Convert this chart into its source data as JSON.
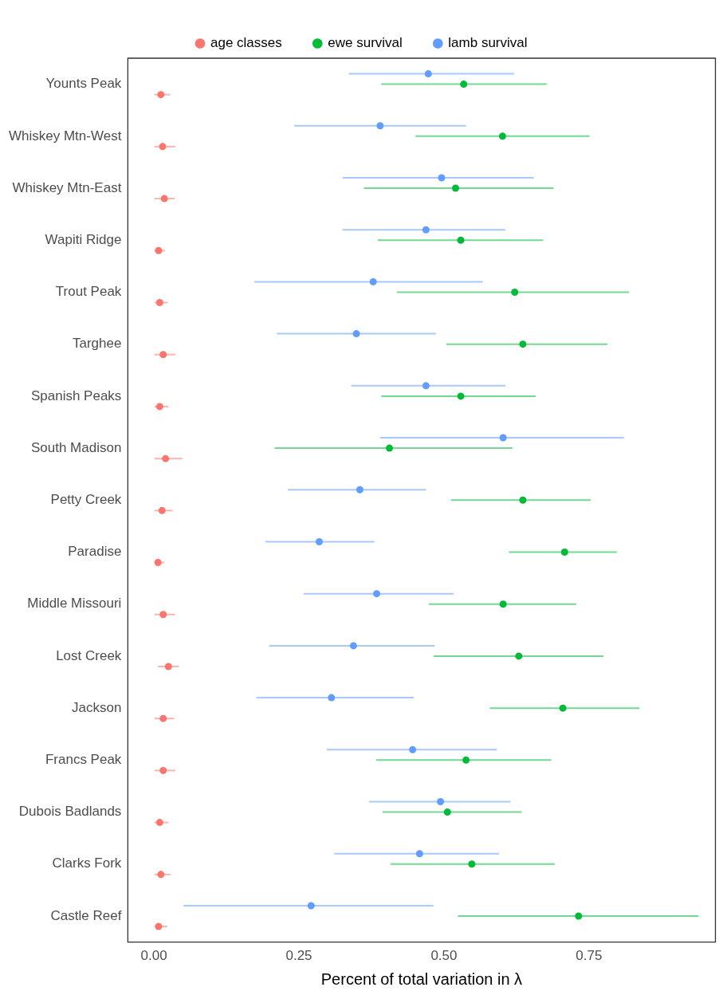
{
  "chart_data": {
    "type": "scatter",
    "orientation": "horizontal",
    "xlabel": "Percent of total variation in λ",
    "categories": [
      "Younts Peak",
      "Whiskey Mtn-West",
      "Whiskey Mtn-East",
      "Wapiti Ridge",
      "Trout Peak",
      "Targhee",
      "Spanish Peaks",
      "South Madison",
      "Petty Creek",
      "Paradise",
      "Middle Missouri",
      "Lost Creek",
      "Jackson",
      "Francs Peak",
      "Dubois Badlands",
      "Clarks Fork",
      "Castle Reef"
    ],
    "series": [
      {
        "name": "age classes",
        "color": "#f8766d",
        "values": [
          0.012,
          0.015,
          0.018,
          0.008,
          0.01,
          0.016,
          0.01,
          0.02,
          0.014,
          0.007,
          0.016,
          0.025,
          0.016,
          0.016,
          0.01,
          0.012,
          0.008
        ],
        "errors": [
          [
            0.001,
            0.028
          ],
          [
            0.001,
            0.037
          ],
          [
            0.001,
            0.036
          ],
          [
            0.001,
            0.019
          ],
          [
            0.001,
            0.024
          ],
          [
            0.001,
            0.037
          ],
          [
            0.001,
            0.025
          ],
          [
            0.001,
            0.049
          ],
          [
            0.001,
            0.032
          ],
          [
            0.001,
            0.018
          ],
          [
            0.001,
            0.036
          ],
          [
            0.007,
            0.043
          ],
          [
            0.001,
            0.035
          ],
          [
            0.001,
            0.037
          ],
          [
            0.001,
            0.025
          ],
          [
            0.001,
            0.029
          ],
          [
            0.001,
            0.023
          ]
        ]
      },
      {
        "name": "ewe survival",
        "color": "#00ba38",
        "values": [
          0.534,
          0.601,
          0.52,
          0.529,
          0.622,
          0.636,
          0.529,
          0.406,
          0.636,
          0.708,
          0.602,
          0.629,
          0.705,
          0.538,
          0.506,
          0.548,
          0.732
        ],
        "errors": [
          [
            0.392,
            0.677
          ],
          [
            0.451,
            0.751
          ],
          [
            0.362,
            0.689
          ],
          [
            0.386,
            0.671
          ],
          [
            0.419,
            0.819
          ],
          [
            0.504,
            0.782
          ],
          [
            0.392,
            0.658
          ],
          [
            0.208,
            0.618
          ],
          [
            0.512,
            0.753
          ],
          [
            0.612,
            0.798
          ],
          [
            0.474,
            0.728
          ],
          [
            0.482,
            0.775
          ],
          [
            0.579,
            0.837
          ],
          [
            0.383,
            0.685
          ],
          [
            0.394,
            0.634
          ],
          [
            0.408,
            0.691
          ],
          [
            0.524,
            0.939
          ]
        ]
      },
      {
        "name": "lamb survival",
        "color": "#619cff",
        "values": [
          0.473,
          0.39,
          0.496,
          0.469,
          0.378,
          0.349,
          0.469,
          0.602,
          0.355,
          0.285,
          0.384,
          0.344,
          0.306,
          0.446,
          0.494,
          0.458,
          0.271
        ],
        "errors": [
          [
            0.336,
            0.621
          ],
          [
            0.242,
            0.538
          ],
          [
            0.325,
            0.655
          ],
          [
            0.325,
            0.606
          ],
          [
            0.173,
            0.567
          ],
          [
            0.212,
            0.486
          ],
          [
            0.34,
            0.606
          ],
          [
            0.39,
            0.81
          ],
          [
            0.231,
            0.469
          ],
          [
            0.192,
            0.38
          ],
          [
            0.258,
            0.517
          ],
          [
            0.199,
            0.484
          ],
          [
            0.177,
            0.448
          ],
          [
            0.298,
            0.591
          ],
          [
            0.371,
            0.615
          ],
          [
            0.311,
            0.595
          ],
          [
            0.051,
            0.482
          ]
        ]
      }
    ],
    "xlim": [
      -0.045,
      0.968
    ],
    "xticks": [
      {
        "value": 0,
        "label": "0.00"
      },
      {
        "value": 0.25,
        "label": "0.25"
      },
      {
        "value": 0.5,
        "label": "0.50"
      },
      {
        "value": 0.75,
        "label": "0.75"
      }
    ],
    "grid": false,
    "legend": "top",
    "marker": "circle"
  }
}
